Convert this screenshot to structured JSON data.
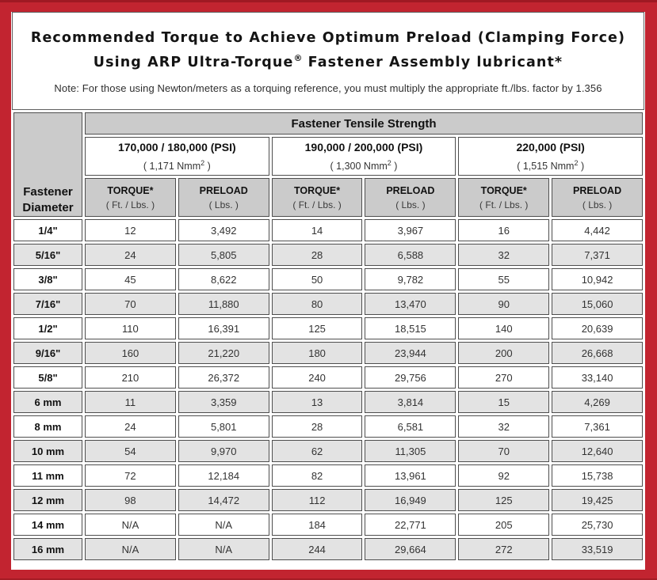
{
  "header": {
    "title_line1": "Recommended Torque to Achieve Optimum Preload (Clamping Force)",
    "title_line2_pre": "Using ARP Ultra-Torque",
    "title_line2_sup": "®",
    "title_line2_post": " Fastener Assembly lubricant*",
    "note": "Note: For those using Newton/meters as a torquing reference, you must multiply the appropriate ft./lbs. factor by 1.356"
  },
  "table": {
    "tensile_header": "Fastener Tensile Strength",
    "diameter_header_line1": "Fastener",
    "diameter_header_line2": "Diameter",
    "strength_groups": [
      {
        "psi": "170,000 / 180,000 (PSI)",
        "nmm_pre": "( 1,171 Nmm",
        "nmm_sup": "2",
        "nmm_post": " )"
      },
      {
        "psi": "190,000 / 200,000 (PSI)",
        "nmm_pre": "( 1,300 Nmm",
        "nmm_sup": "2",
        "nmm_post": " )"
      },
      {
        "psi": "220,000 (PSI)",
        "nmm_pre": "( 1,515 Nmm",
        "nmm_sup": "2",
        "nmm_post": " )"
      }
    ],
    "col_headers": {
      "torque_label": "TORQUE*",
      "torque_unit": "( Ft. / Lbs. )",
      "preload_label": "PRELOAD",
      "preload_unit": "( Lbs. )"
    },
    "rows": [
      {
        "diameter": "1/4\"",
        "values": [
          "12",
          "3,492",
          "14",
          "3,967",
          "16",
          "4,442"
        ]
      },
      {
        "diameter": "5/16\"",
        "values": [
          "24",
          "5,805",
          "28",
          "6,588",
          "32",
          "7,371"
        ]
      },
      {
        "diameter": "3/8\"",
        "values": [
          "45",
          "8,622",
          "50",
          "9,782",
          "55",
          "10,942"
        ]
      },
      {
        "diameter": "7/16\"",
        "values": [
          "70",
          "11,880",
          "80",
          "13,470",
          "90",
          "15,060"
        ]
      },
      {
        "diameter": "1/2\"",
        "values": [
          "110",
          "16,391",
          "125",
          "18,515",
          "140",
          "20,639"
        ]
      },
      {
        "diameter": "9/16\"",
        "values": [
          "160",
          "21,220",
          "180",
          "23,944",
          "200",
          "26,668"
        ]
      },
      {
        "diameter": "5/8\"",
        "values": [
          "210",
          "26,372",
          "240",
          "29,756",
          "270",
          "33,140"
        ]
      },
      {
        "diameter": "6 mm",
        "values": [
          "11",
          "3,359",
          "13",
          "3,814",
          "15",
          "4,269"
        ]
      },
      {
        "diameter": "8 mm",
        "values": [
          "24",
          "5,801",
          "28",
          "6,581",
          "32",
          "7,361"
        ]
      },
      {
        "diameter": "10 mm",
        "values": [
          "54",
          "9,970",
          "62",
          "11,305",
          "70",
          "12,640"
        ]
      },
      {
        "diameter": "11 mm",
        "values": [
          "72",
          "12,184",
          "82",
          "13,961",
          "92",
          "15,738"
        ]
      },
      {
        "diameter": "12 mm",
        "values": [
          "98",
          "14,472",
          "112",
          "16,949",
          "125",
          "19,425"
        ]
      },
      {
        "diameter": "14 mm",
        "values": [
          "N/A",
          "N/A",
          "184",
          "22,771",
          "205",
          "25,730"
        ]
      },
      {
        "diameter": "16 mm",
        "values": [
          "N/A",
          "N/A",
          "244",
          "29,664",
          "272",
          "33,519"
        ]
      }
    ]
  },
  "colors": {
    "frame_red": "#c22430",
    "header_gray": "#cbcbcb",
    "row_alt_gray": "#e3e3e3",
    "cell_border": "#4e4e4e"
  }
}
